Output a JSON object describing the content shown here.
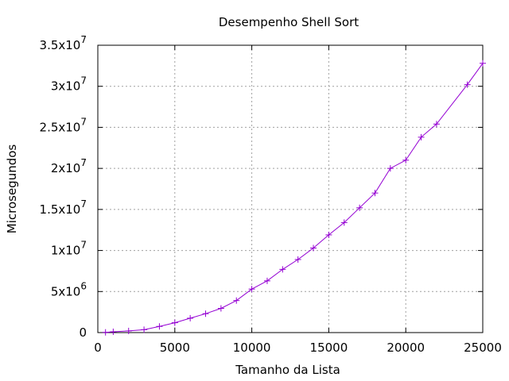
{
  "chart_data": {
    "type": "line",
    "title": "Desempenho Shell Sort",
    "xlabel": "Tamanho da Lista",
    "ylabel": "Microsegundos",
    "xlim": [
      0,
      25000
    ],
    "ylim": [
      0,
      35000000
    ],
    "grid": true,
    "series_color": "#9400d3",
    "xticks": [
      {
        "value": 0,
        "label": "0"
      },
      {
        "value": 5000,
        "label": "5000"
      },
      {
        "value": 10000,
        "label": "10000"
      },
      {
        "value": 15000,
        "label": "15000"
      },
      {
        "value": 20000,
        "label": "20000"
      },
      {
        "value": 25000,
        "label": "25000"
      }
    ],
    "yticks": [
      {
        "value": 0,
        "mantissa": "0",
        "exp": ""
      },
      {
        "value": 5000000,
        "mantissa": "5x10",
        "exp": "6"
      },
      {
        "value": 10000000,
        "mantissa": "1x10",
        "exp": "7"
      },
      {
        "value": 15000000,
        "mantissa": "1.5x10",
        "exp": "7"
      },
      {
        "value": 20000000,
        "mantissa": "2x10",
        "exp": "7"
      },
      {
        "value": 25000000,
        "mantissa": "2.5x10",
        "exp": "7"
      },
      {
        "value": 30000000,
        "mantissa": "3x10",
        "exp": "7"
      },
      {
        "value": 35000000,
        "mantissa": "3.5x10",
        "exp": "7"
      }
    ],
    "x": [
      500,
      1000,
      2000,
      3000,
      4000,
      5000,
      6000,
      7000,
      8000,
      9000,
      10000,
      11000,
      12000,
      13000,
      14000,
      15000,
      16000,
      17000,
      18000,
      19000,
      20000,
      21000,
      22000,
      24000,
      25000
    ],
    "y": [
      30000,
      100000,
      200000,
      350000,
      750000,
      1200000,
      1750000,
      2300000,
      2950000,
      3900000,
      5300000,
      6300000,
      7700000,
      8900000,
      10300000,
      11900000,
      13400000,
      15200000,
      17000000,
      20000000,
      21000000,
      23800000,
      25400000,
      30200000,
      32800000
    ]
  }
}
